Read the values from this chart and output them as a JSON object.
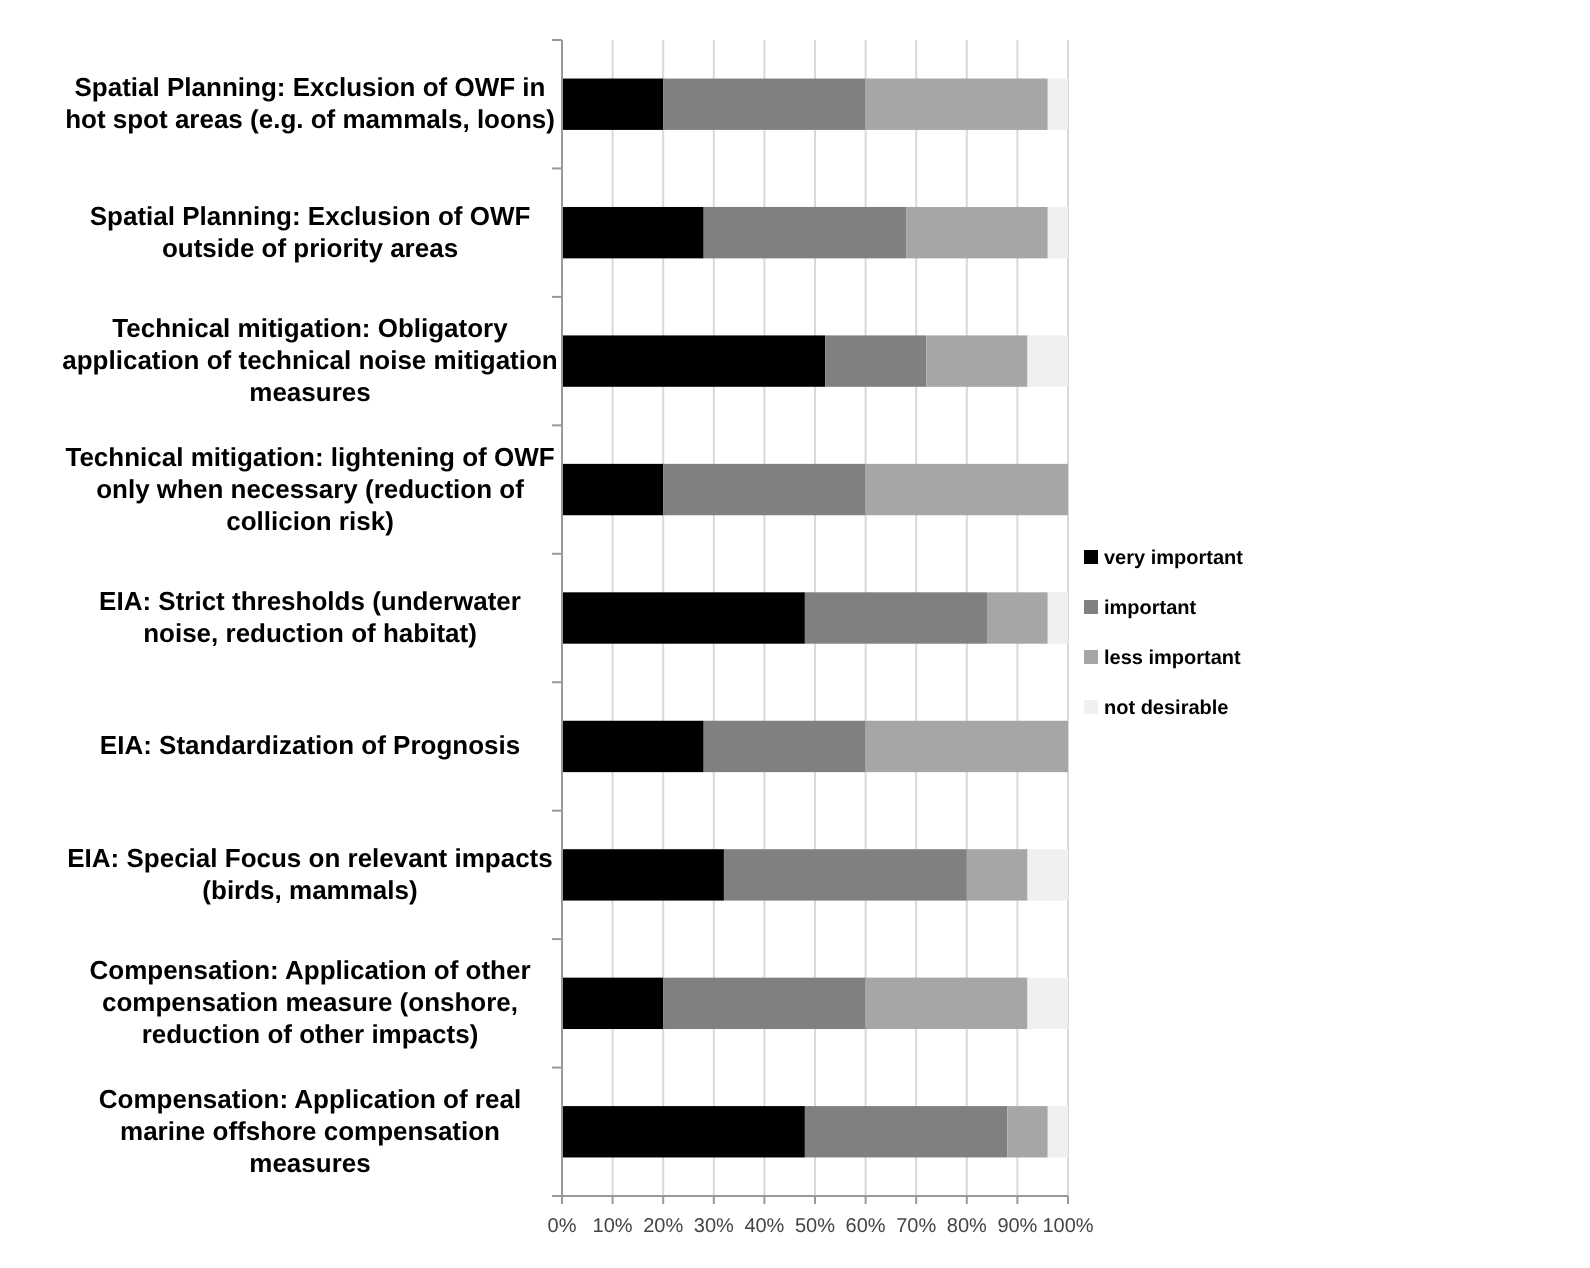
{
  "chart_data": {
    "type": "bar",
    "orientation": "horizontal",
    "stacked": true,
    "categories": [
      "Spatial Planning: Exclusion of OWF in hot spot areas (e.g. of mammals, loons)",
      "Spatial Planning: Exclusion of OWF outside of priority areas",
      "Technical mitigation: Obligatory application of technical noise mitigation measures",
      "Technical mitigation: lightening of OWF only when necessary (reduction of collicion risk)",
      "EIA: Strict thresholds (underwater noise, reduction of habitat)",
      "EIA: Standardization of Prognosis",
      "EIA: Special Focus on relevant impacts (birds, mammals)",
      "Compensation: Application of other compensation measure (onshore, reduction of other impacts)",
      "Compensation: Application of real marine offshore compensation measures"
    ],
    "series": [
      {
        "name": "very important",
        "color": "#000000",
        "values": [
          20,
          28,
          52,
          20,
          48,
          28,
          32,
          20,
          48
        ]
      },
      {
        "name": "important",
        "color": "#808080",
        "values": [
          40,
          40,
          20,
          40,
          36,
          32,
          48,
          40,
          40
        ]
      },
      {
        "name": "less important",
        "color": "#a6a6a6",
        "values": [
          36,
          28,
          20,
          40,
          12,
          40,
          12,
          32,
          8
        ]
      },
      {
        "name": "not desirable",
        "color": "#f0f0f0",
        "values": [
          4,
          4,
          8,
          0,
          4,
          0,
          8,
          8,
          4
        ]
      }
    ],
    "xlim": [
      0,
      100
    ],
    "xticks": [
      {
        "value": 0,
        "label": "0%"
      },
      {
        "value": 10,
        "label": "10%"
      },
      {
        "value": 20,
        "label": "20%"
      },
      {
        "value": 30,
        "label": "30%"
      },
      {
        "value": 40,
        "label": "40%"
      },
      {
        "value": 50,
        "label": "50%"
      },
      {
        "value": 60,
        "label": "60%"
      },
      {
        "value": 70,
        "label": "70%"
      },
      {
        "value": 80,
        "label": "80%"
      },
      {
        "value": 90,
        "label": "90%"
      },
      {
        "value": 100,
        "label": "100%"
      }
    ],
    "grid": "x",
    "legend": "right"
  }
}
